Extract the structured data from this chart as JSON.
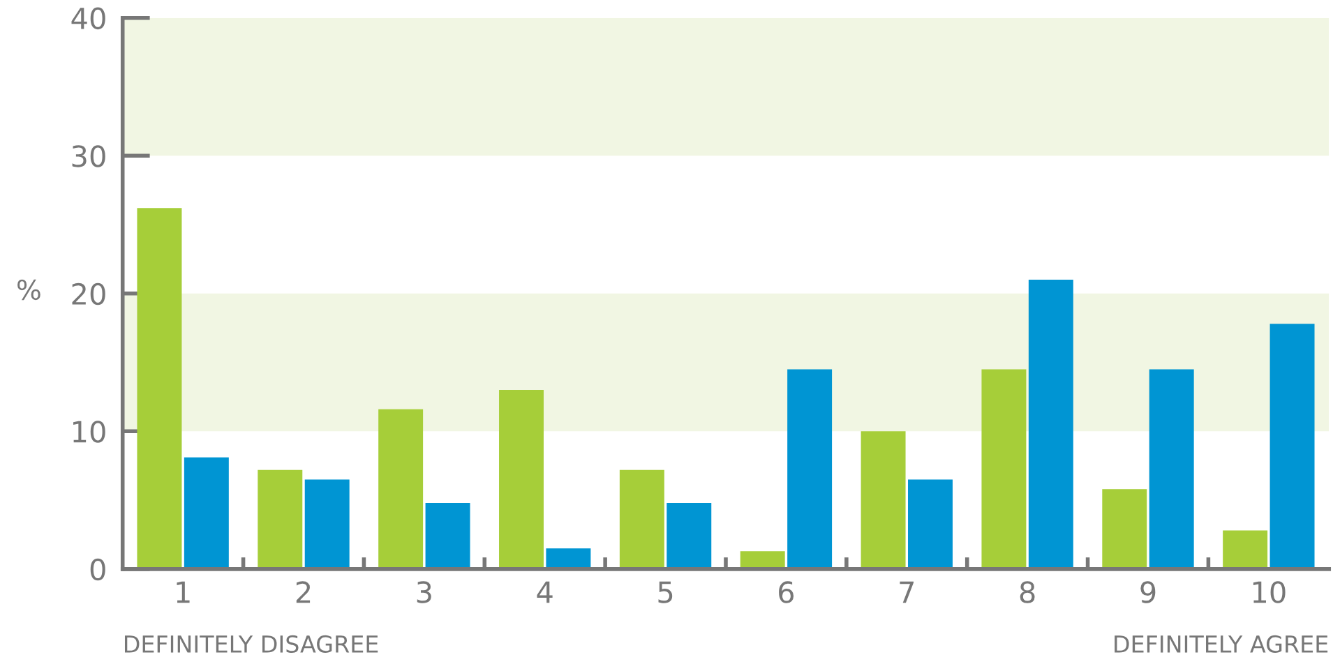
{
  "chart_data": {
    "type": "bar",
    "categories": [
      "1",
      "2",
      "3",
      "4",
      "5",
      "6",
      "7",
      "8",
      "9",
      "10"
    ],
    "series": [
      {
        "color": "#a6ce39",
        "values": [
          26.2,
          7.2,
          11.6,
          13.0,
          7.2,
          1.3,
          10.0,
          14.5,
          5.8,
          2.8
        ]
      },
      {
        "color": "#0095d3",
        "values": [
          8.1,
          6.5,
          4.8,
          1.5,
          4.8,
          14.5,
          6.5,
          21.0,
          14.5,
          17.8
        ]
      }
    ],
    "ylabel": "%",
    "ylim": [
      0,
      40
    ],
    "yticks": [
      0,
      10,
      20,
      30,
      40
    ],
    "bands": [
      {
        "axis": "y",
        "from": 10,
        "to": 20,
        "color": "#f1f6e3"
      },
      {
        "axis": "y",
        "from": 30,
        "to": 40,
        "color": "#f1f6e3"
      }
    ],
    "annotations": [
      "DEFINITELY DISAGREE",
      "DEFINITELY AGREE"
    ],
    "grid": false,
    "legend": false
  }
}
